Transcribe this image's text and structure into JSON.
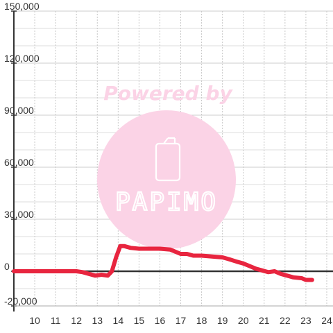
{
  "chart_data": {
    "type": "line",
    "title": "",
    "xlabel": "",
    "ylabel": "",
    "xlim": [
      9,
      24.3
    ],
    "ylim": [
      -20000,
      150000
    ],
    "x_ticks": [
      10,
      11,
      12,
      13,
      14,
      15,
      16,
      17,
      18,
      19,
      20,
      21,
      22,
      23,
      24
    ],
    "y_ticks": [
      -20000,
      0,
      30000,
      60000,
      90000,
      120000,
      150000
    ],
    "y_tick_labels": [
      "-20,000",
      "0",
      "30,000",
      "60,000",
      "90,000",
      "120,000",
      "150,000"
    ],
    "grid": true,
    "series": [
      {
        "color": "#e8253f",
        "x": [
          9.0,
          10.0,
          11.0,
          12.0,
          12.3,
          12.6,
          12.9,
          13.2,
          13.5,
          13.7,
          13.9,
          14.1,
          14.3,
          14.6,
          15.0,
          15.5,
          16.0,
          16.5,
          16.8,
          17.0,
          17.3,
          17.6,
          18.0,
          18.5,
          19.0,
          19.3,
          19.7,
          20.0,
          20.3,
          20.6,
          20.9,
          21.2,
          21.5,
          21.8,
          22.1,
          22.4,
          22.8,
          23.0,
          23.3
        ],
        "y": [
          0,
          0,
          0,
          0,
          -500,
          -1500,
          -2500,
          -2000,
          -2500,
          0,
          8000,
          14500,
          14500,
          13500,
          13000,
          13000,
          13000,
          12500,
          11000,
          10000,
          10000,
          9000,
          9000,
          8500,
          8000,
          7000,
          5500,
          4500,
          3000,
          1500,
          500,
          -500,
          0,
          -1500,
          -2500,
          -3500,
          -4000,
          -5000,
          -5000
        ]
      }
    ]
  },
  "watermark": {
    "title": "Powered by",
    "logo_text": "PAPIMO",
    "circle_color": "#fbd3e6"
  }
}
